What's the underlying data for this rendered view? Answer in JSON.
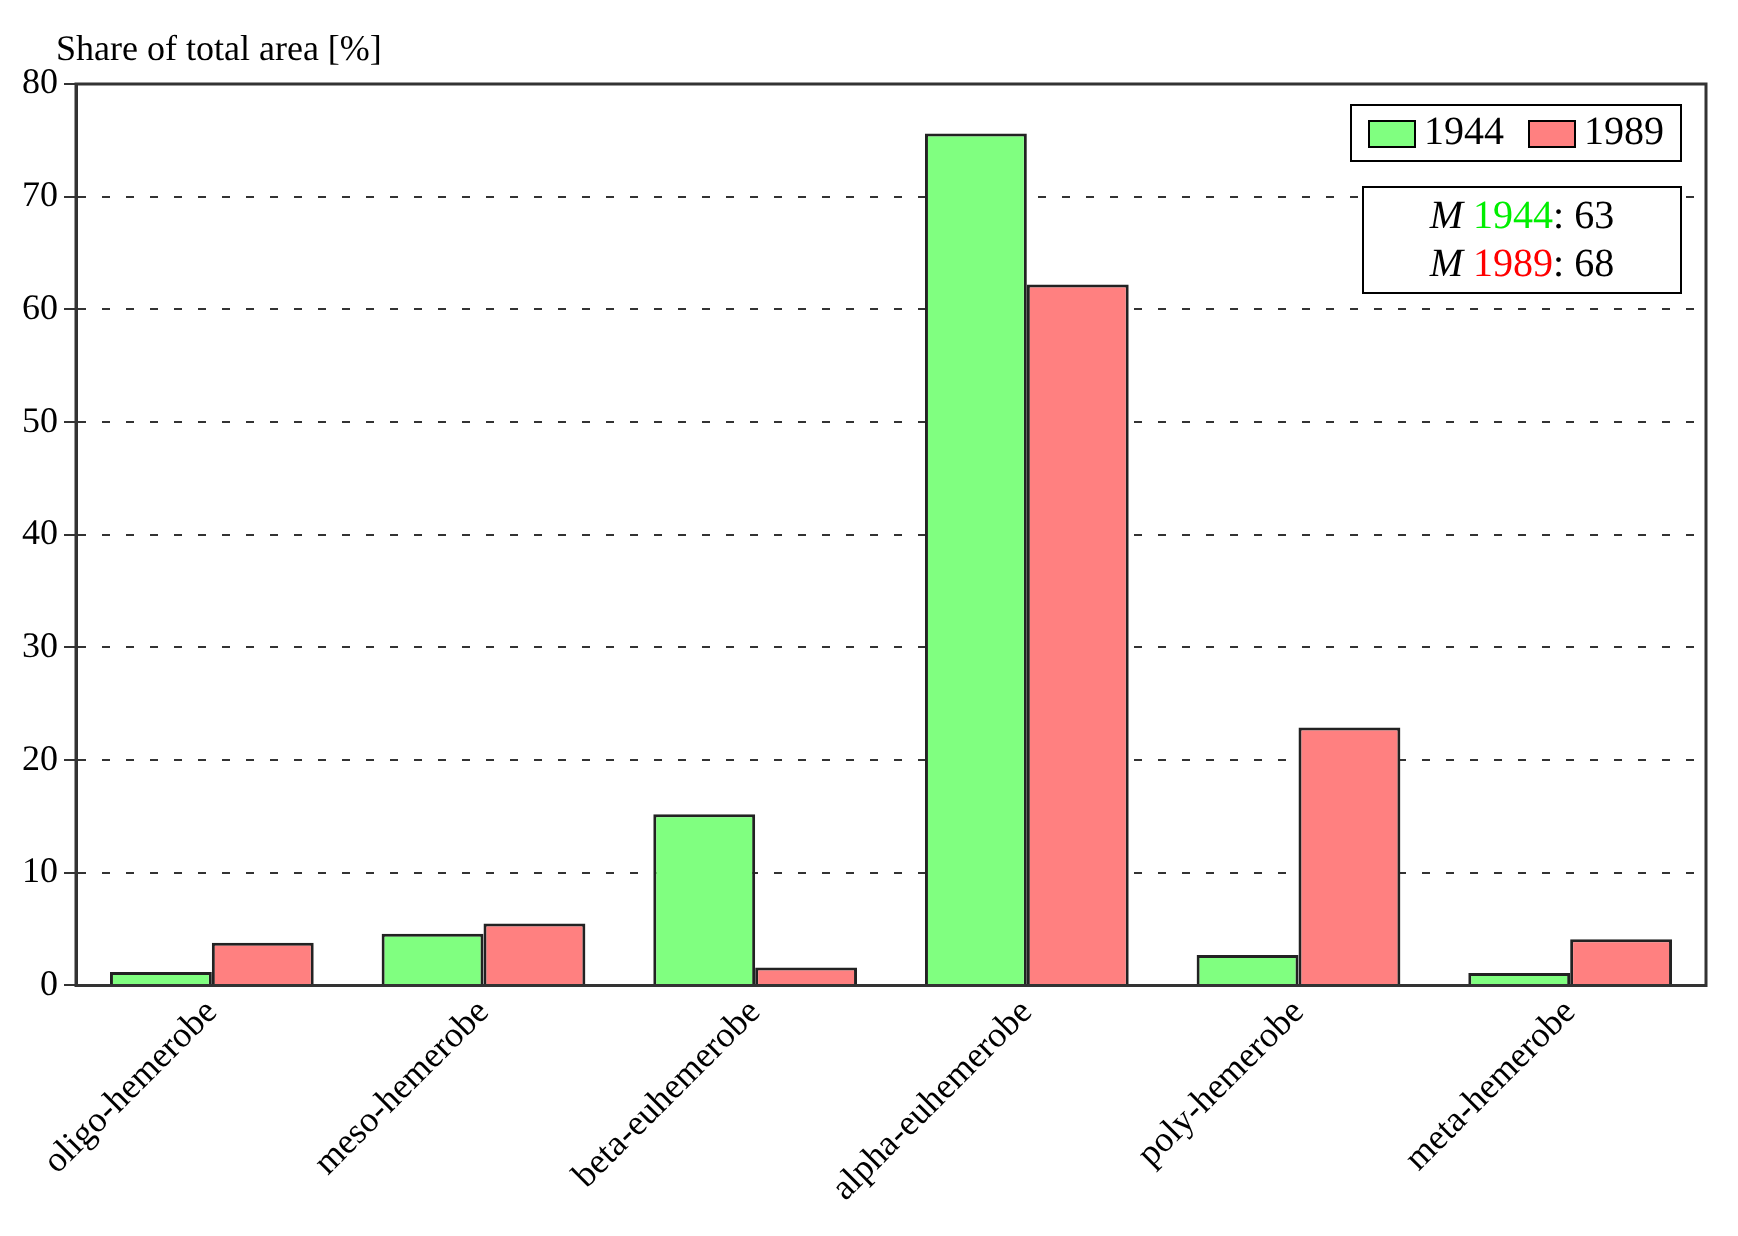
{
  "chart_data": {
    "type": "bar",
    "ylabel": "Share of total area [%]",
    "categories": [
      "oligo-hemerobe",
      "meso-hemerobe",
      "beta-euhemerobe",
      "alpha-euhemerobe",
      "poly-hemerobe",
      "meta-hemerobe"
    ],
    "series": [
      {
        "name": "1944",
        "color": "#80ff80",
        "values": [
          1.2,
          4.6,
          15.2,
          75.6,
          2.7,
          1.1
        ]
      },
      {
        "name": "1989",
        "color": "#ff8080",
        "values": [
          3.8,
          5.5,
          1.6,
          62.2,
          22.9,
          4.1
        ]
      }
    ],
    "ylim": [
      0,
      80
    ],
    "yticks": [
      0,
      10,
      20,
      30,
      40,
      50,
      60,
      70,
      80
    ],
    "grid": "y",
    "legend": "top right",
    "annotations": [
      "M 1944: 63",
      "M 1989: 68"
    ]
  }
}
